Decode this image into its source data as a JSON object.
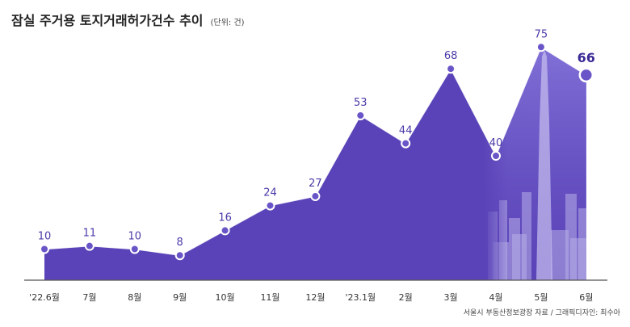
{
  "title": "잠실 주거용 토지거래허가건수 추이",
  "unit": "(단위: 건)",
  "source": "서울시 부동산정보광장 자료 / 그래픽디자인: 최수아",
  "colors": {
    "area_fill": "#5a43b8",
    "line": "#ffffff",
    "point_fill": "#6a55c8",
    "point_stroke": "#ffffff",
    "axis": "#555555",
    "skyline_tint": "#7f6fd0"
  },
  "chart_data": {
    "type": "area",
    "categories": [
      "'22.6월",
      "7월",
      "8월",
      "9월",
      "10월",
      "11월",
      "12월",
      "'23.1월",
      "2월",
      "3월",
      "4월",
      "5월",
      "6월"
    ],
    "series": [
      {
        "values": [
          10,
          11,
          10,
          8,
          16,
          24,
          27,
          53,
          44,
          68,
          40,
          75,
          66
        ]
      }
    ],
    "ylim": [
      0,
      80
    ],
    "grid": false,
    "highlight_last": true,
    "background_image": "city-skyline-with-tower"
  }
}
